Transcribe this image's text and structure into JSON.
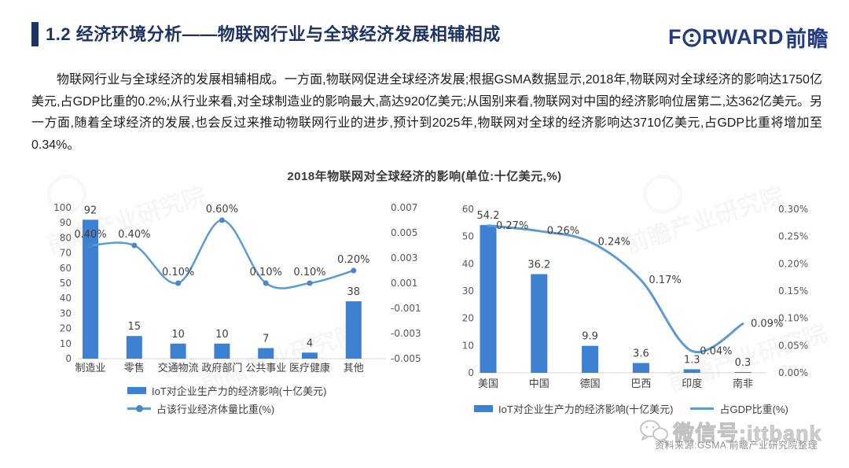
{
  "header": {
    "title": "1.2 经济环境分析——物联网行业与全球经济发展相辅相成",
    "logo": {
      "f": "F",
      "rest": "RWARD",
      "cn": "前瞻"
    }
  },
  "body_paragraph": "物联网行业与全球经济的发展相辅相成。一方面,物联网促进全球经济发展;根据GSMA数据显示,2018年,物联网对全球经济的影响达1750亿美元,占GDP比重的0.2%;从行业来看,对全球制造业的影响最大,高达920亿美元;从国别来看,物联网对中国的经济影响位居第二,达362亿美元。另一方面,随着全球经济的发展,也会反过来推动物联网行业的进步,预计到2025年,物联网对全球的经济影响达3710亿美元,占GDP比重将增加至0.34%。",
  "chart_section": {
    "title": "2018年物联网对全球经济的影响(单位:十亿美元,%)"
  },
  "chart_data": [
    {
      "type": "combo-bar-line",
      "subject": "IoT economic impact by industry, 2018",
      "categories": [
        "制造业",
        "零售",
        "交通物流",
        "政府部门",
        "公共事业",
        "医疗健康",
        "其他"
      ],
      "series": [
        {
          "name": "IoT对企业生产力的经济影响(十亿美元)",
          "type": "bar",
          "values": [
            92,
            15,
            10,
            10,
            7,
            4,
            38
          ],
          "labels": [
            "92",
            "15",
            "10",
            "10",
            "7",
            "4",
            "38"
          ]
        },
        {
          "name": "占该行业经济体量比重(%)",
          "type": "line",
          "values": [
            0.004,
            0.004,
            0.001,
            0.006,
            0.001,
            0.001,
            0.002
          ],
          "labels": [
            "0.40%",
            "0.40%",
            "0.10%",
            "0.60%",
            "0.10%",
            "0.10%",
            "0.20%"
          ]
        }
      ],
      "left_axis": {
        "min": 0,
        "max": 100,
        "ticks": [
          "100",
          "90",
          "80",
          "70",
          "60",
          "50",
          "40",
          "30",
          "20",
          "10",
          "0"
        ]
      },
      "right_axis": {
        "min": -0.005,
        "max": 0.007,
        "ticks": [
          "0.007",
          "0.005",
          "0.003",
          "0.001",
          "-0.001",
          "-0.003",
          "-0.005"
        ]
      },
      "grid": false,
      "legend_position": "below"
    },
    {
      "type": "combo-bar-line",
      "subject": "IoT economic impact by country, 2018",
      "categories": [
        "美国",
        "中国",
        "德国",
        "巴西",
        "印度",
        "南非"
      ],
      "series": [
        {
          "name": "IoT对企业生产力的经济影响(十亿美元)",
          "type": "bar",
          "values": [
            54.2,
            36.2,
            9.9,
            3.6,
            1.3,
            0.3
          ],
          "labels": [
            "54.2",
            "36.2",
            "9.9",
            "3.6",
            "1.3",
            "0.3"
          ]
        },
        {
          "name": "占GDP比重(%)",
          "type": "line",
          "values": [
            0.0027,
            0.0026,
            0.0024,
            0.0017,
            0.0004,
            0.0009
          ],
          "labels": [
            "0.27%",
            "0.26%",
            "0.24%",
            "0.17%",
            "0.04%",
            "0.09%"
          ]
        }
      ],
      "left_axis": {
        "min": 0,
        "max": 60,
        "ticks": [
          "60",
          "50",
          "40",
          "30",
          "20",
          "10",
          "0"
        ]
      },
      "right_axis": {
        "min": 0,
        "max": 0.003,
        "ticks": [
          "0.30%",
          "0.25%",
          "0.20%",
          "0.15%",
          "0.10%",
          "0.05%",
          "0.00%"
        ]
      },
      "grid": false,
      "legend_position": "below"
    }
  ],
  "footer": {
    "source": "资料来源:GSMA 前瞻产业研究院整理",
    "wechat_watermark": "微信号:ittbank"
  },
  "watermark_text": "前瞻产业研究院",
  "colors": {
    "bar": "#3e80d2",
    "line": "#5b9bd5",
    "marker": "#4a86c8",
    "navy": "#1e3263",
    "axis": "#d6d6d6",
    "label": "#404040",
    "tick": "#595959"
  }
}
